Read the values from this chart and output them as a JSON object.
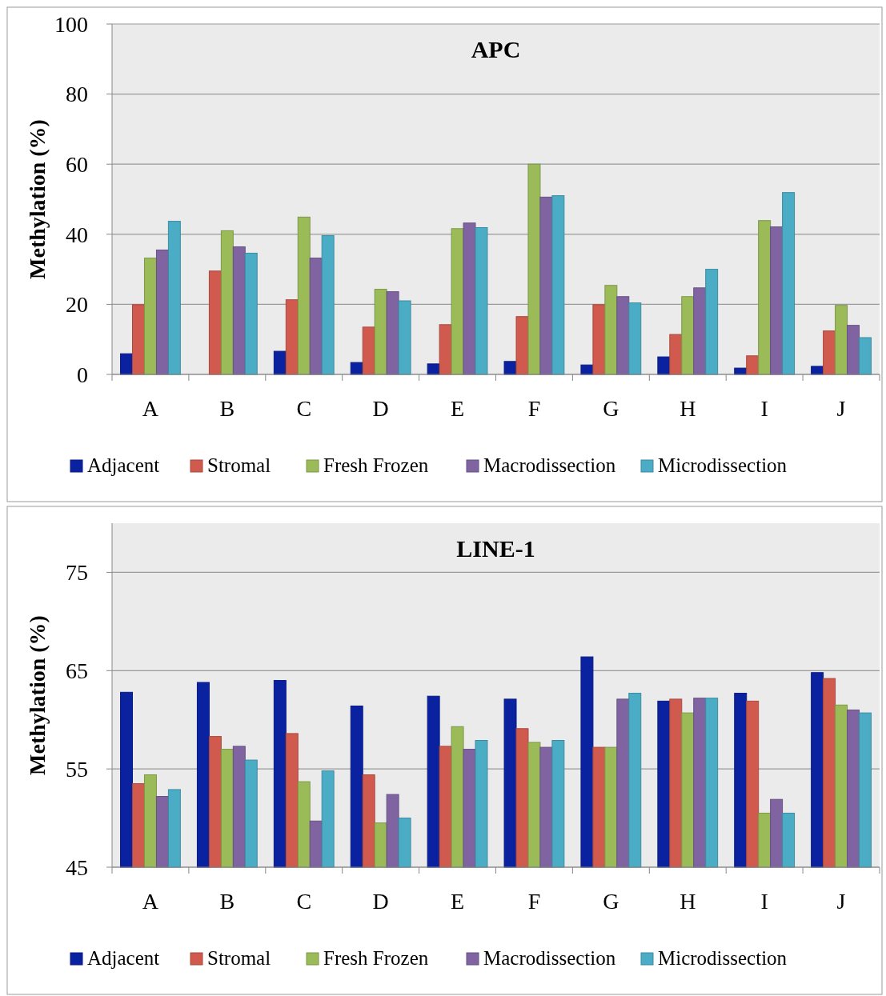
{
  "chart_data": [
    {
      "type": "bar",
      "title": "APC",
      "ylabel": "Methylation (%)",
      "categories": [
        "A",
        "B",
        "C",
        "D",
        "E",
        "F",
        "G",
        "H",
        "I",
        "J"
      ],
      "ylim": [
        0,
        100
      ],
      "yticks": [
        0,
        20,
        40,
        60,
        80,
        100
      ],
      "grid": "y",
      "legend": "bottom",
      "series": [
        {
          "name": "Adjacent",
          "color": "#0b22a0",
          "values": [
            5.9,
            0,
            6.6,
            3.4,
            3,
            3.7,
            2.7,
            5,
            1.8,
            2.3
          ]
        },
        {
          "name": "Stromal",
          "color": "#d05a4e",
          "values": [
            19.9,
            29.5,
            21.3,
            13.5,
            14.2,
            16.5,
            19.9,
            11.4,
            5.3,
            12.4
          ]
        },
        {
          "name": "Fresh Frozen",
          "color": "#9bbb59",
          "values": [
            33.2,
            41,
            44.9,
            24.3,
            41.6,
            60,
            25.4,
            22.2,
            43.9,
            19.7
          ]
        },
        {
          "name": "Macrodissection",
          "color": "#8064a2",
          "values": [
            35.5,
            36.4,
            33.2,
            23.6,
            43.2,
            50.6,
            22.2,
            24.7,
            42.1,
            14
          ]
        },
        {
          "name": "Microdissection",
          "color": "#4bacc6",
          "values": [
            43.7,
            34.6,
            39.6,
            21,
            41.9,
            51,
            20.4,
            30,
            51.9,
            10.5
          ]
        }
      ]
    },
    {
      "type": "bar",
      "title": "LINE-1",
      "ylabel": "Methylation (%)",
      "categories": [
        "A",
        "B",
        "C",
        "D",
        "E",
        "F",
        "G",
        "H",
        "I",
        "J"
      ],
      "ylim": [
        45,
        80
      ],
      "yticks": [
        45,
        55,
        65,
        75
      ],
      "grid": "y",
      "legend": "bottom",
      "series": [
        {
          "name": "Adjacent",
          "color": "#0b22a0",
          "values": [
            62.8,
            63.8,
            64,
            61.4,
            62.4,
            62.1,
            66.4,
            61.9,
            62.7,
            64.8
          ]
        },
        {
          "name": "Stromal",
          "color": "#d05a4e",
          "values": [
            53.5,
            58.3,
            58.6,
            54.4,
            57.3,
            59.1,
            57.2,
            62.1,
            61.9,
            64.2
          ]
        },
        {
          "name": "Fresh Frozen",
          "color": "#9bbb59",
          "values": [
            54.4,
            57,
            53.7,
            49.5,
            59.3,
            57.7,
            57.2,
            60.7,
            50.5,
            61.5
          ]
        },
        {
          "name": "Macrodissection",
          "color": "#8064a2",
          "values": [
            52.2,
            57.3,
            49.7,
            52.4,
            57,
            57.2,
            62.1,
            62.2,
            51.9,
            61
          ]
        },
        {
          "name": "Microdissection",
          "color": "#4bacc6",
          "values": [
            52.9,
            55.9,
            54.8,
            50,
            57.9,
            57.9,
            62.7,
            62.2,
            50.5,
            60.7
          ]
        }
      ]
    }
  ]
}
